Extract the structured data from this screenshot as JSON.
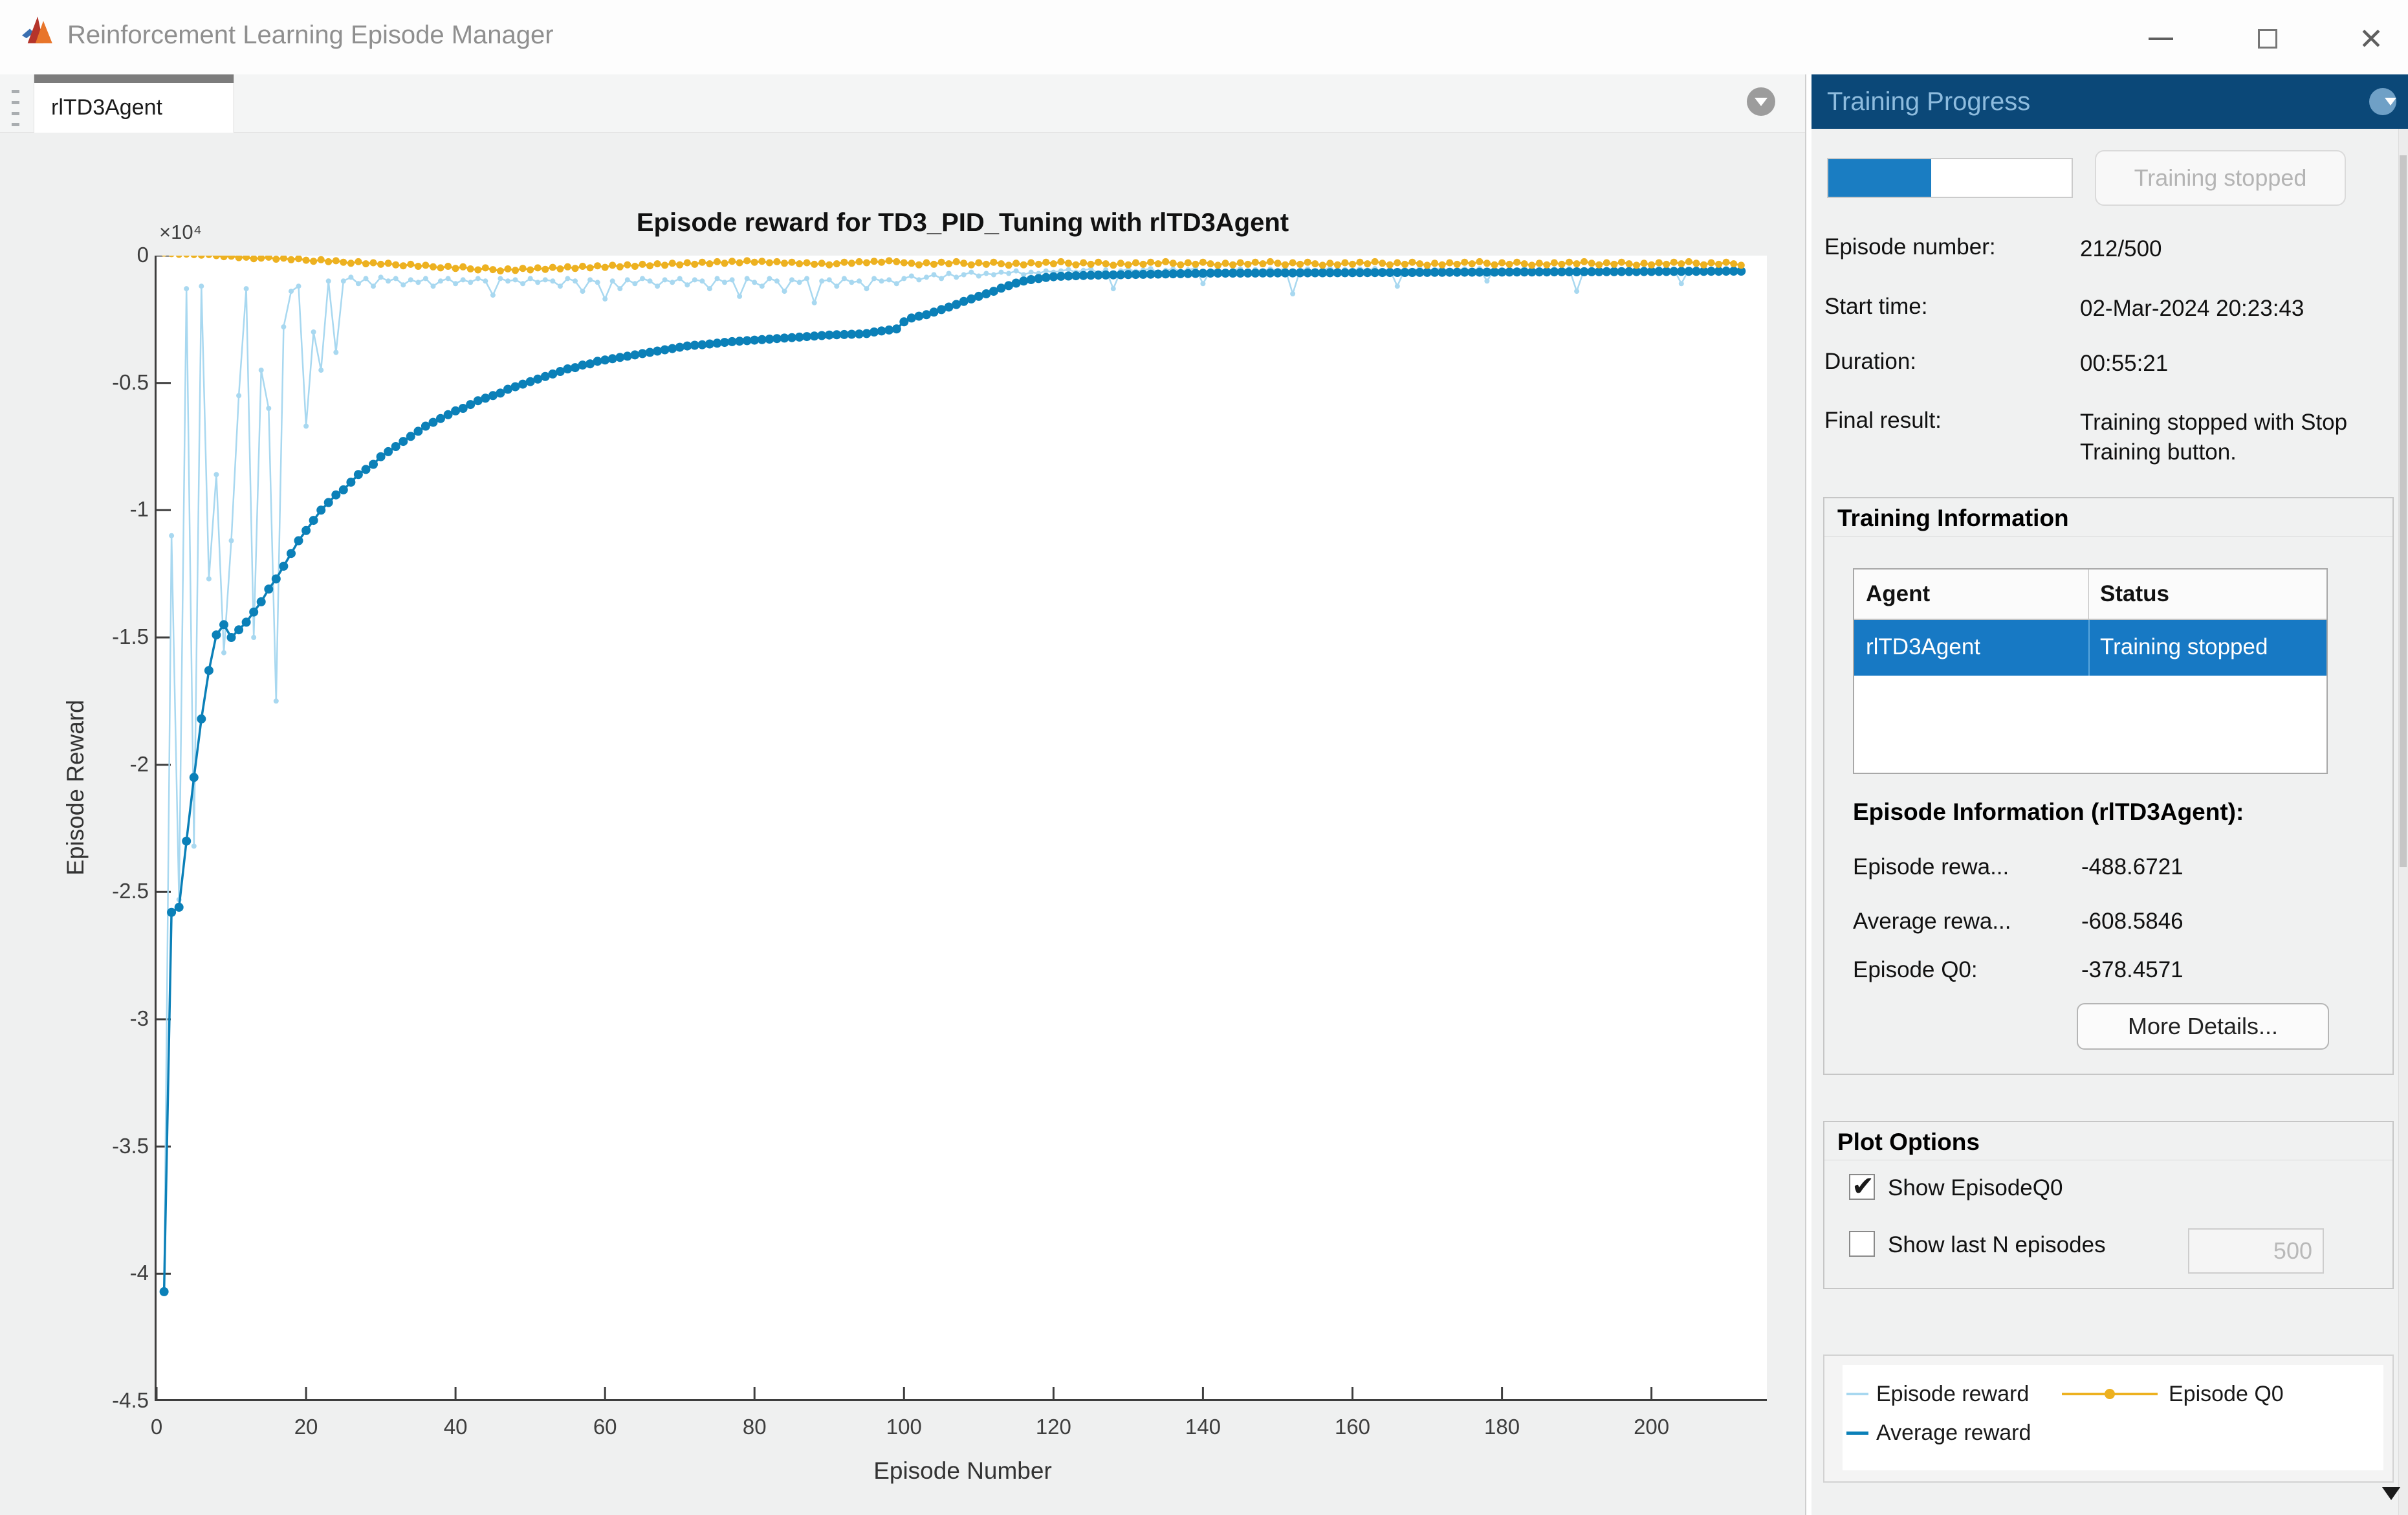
{
  "window": {
    "title": "Reinforcement Learning Episode Manager",
    "controls": {
      "minimize": "minimize",
      "maximize": "maximize",
      "close": "close"
    }
  },
  "tabbar": {
    "tab_label": "rlTD3Agent"
  },
  "colors": {
    "panel_header_bg": "#0b4878",
    "panel_header_text": "#8ebcde",
    "selection_bg": "#1779c4",
    "progress_fill": "#1a7dc2"
  },
  "panel": {
    "header": "Training Progress",
    "progress": {
      "percent": 42.4
    },
    "stop_button_label": "Training stopped",
    "rows": [
      {
        "label": "Episode number:",
        "value": "212/500"
      },
      {
        "label": "Start time:",
        "value": "02-Mar-2024 20:23:43"
      },
      {
        "label": "Duration:",
        "value": "00:55:21"
      },
      {
        "label": "Final result:",
        "value": "Training stopped with Stop Training button."
      }
    ],
    "training_information": {
      "title": "Training Information",
      "table": {
        "columns": [
          "Agent",
          "Status"
        ],
        "rows": [
          {
            "agent": "rlTD3Agent",
            "status": "Training stopped",
            "selected": true
          }
        ]
      },
      "episode_info_title": "Episode Information (rlTD3Agent):",
      "stats": [
        {
          "label": "Episode rewa...",
          "value": "-488.6721"
        },
        {
          "label": "Average rewa...",
          "value": "-608.5846"
        },
        {
          "label": "Episode Q0:",
          "value": "-378.4571"
        }
      ],
      "more_details_label": "More Details..."
    },
    "plot_options": {
      "title": "Plot Options",
      "show_episode_q0": {
        "label": "Show EpisodeQ0",
        "checked": true
      },
      "show_last_n": {
        "label": "Show last N episodes",
        "checked": false,
        "value": "500"
      }
    }
  },
  "chart_data": {
    "type": "line",
    "title": "Episode reward for TD3_PID_Tuning with rlTD3Agent",
    "xlabel": "Episode Number",
    "ylabel": "Episode Reward",
    "exponent_label": "×10⁴",
    "value_scale": 10000,
    "xlim": [
      0,
      215.7
    ],
    "ylim": [
      -4.5,
      0
    ],
    "x_ticks": [
      0,
      20,
      40,
      60,
      80,
      100,
      120,
      140,
      160,
      180,
      200
    ],
    "y_ticks": [
      0,
      -0.5,
      -1,
      -1.5,
      -2,
      -2.5,
      -3,
      -3.5,
      -4,
      -4.5
    ],
    "grid": false,
    "legend_position": "panel-bottom-right",
    "series": [
      {
        "name": "Episode reward",
        "color": "#a8d8f0",
        "values": [
          -4.07,
          -1.1,
          -2.53,
          -0.13,
          -2.32,
          -0.12,
          -1.27,
          -0.86,
          -1.56,
          -1.12,
          -0.55,
          -0.13,
          -1.5,
          -0.45,
          -0.6,
          -1.75,
          -0.28,
          -0.14,
          -0.12,
          -0.67,
          -0.3,
          -0.45,
          -0.1,
          -0.38,
          -0.1,
          -0.085,
          -0.11,
          -0.09,
          -0.12,
          -0.085,
          -0.1,
          -0.09,
          -0.115,
          -0.095,
          -0.105,
          -0.09,
          -0.12,
          -0.1,
          -0.09,
          -0.11,
          -0.095,
          -0.105,
          -0.09,
          -0.1,
          -0.155,
          -0.09,
          -0.1,
          -0.095,
          -0.11,
          -0.09,
          -0.105,
          -0.095,
          -0.1,
          -0.12,
          -0.09,
          -0.1,
          -0.14,
          -0.095,
          -0.105,
          -0.17,
          -0.1,
          -0.13,
          -0.095,
          -0.11,
          -0.09,
          -0.1,
          -0.12,
          -0.095,
          -0.105,
          -0.09,
          -0.115,
          -0.095,
          -0.1,
          -0.13,
          -0.09,
          -0.105,
          -0.095,
          -0.16,
          -0.09,
          -0.105,
          -0.12,
          -0.09,
          -0.1,
          -0.14,
          -0.095,
          -0.105,
          -0.09,
          -0.185,
          -0.1,
          -0.095,
          -0.12,
          -0.09,
          -0.105,
          -0.1,
          -0.13,
          -0.09,
          -0.1,
          -0.095,
          -0.11,
          -0.09,
          -0.08,
          -0.095,
          -0.085,
          -0.075,
          -0.09,
          -0.07,
          -0.085,
          -0.075,
          -0.065,
          -0.08,
          -0.07,
          -0.075,
          -0.065,
          -0.07,
          -0.06,
          -0.075,
          -0.065,
          -0.07,
          -0.06,
          -0.065,
          -0.06,
          -0.055,
          -0.065,
          -0.058,
          -0.052,
          -0.068,
          -0.056,
          -0.13,
          -0.06,
          -0.054,
          -0.062,
          -0.057,
          -0.051,
          -0.066,
          -0.058,
          -0.053,
          -0.061,
          -0.056,
          -0.05,
          -0.11,
          -0.059,
          -0.054,
          -0.063,
          -0.057,
          -0.052,
          -0.067,
          -0.055,
          -0.06,
          -0.053,
          -0.058,
          -0.051,
          -0.15,
          -0.057,
          -0.052,
          -0.064,
          -0.056,
          -0.05,
          -0.062,
          -0.055,
          -0.059,
          -0.052,
          -0.057,
          -0.051,
          -0.065,
          -0.056,
          -0.12,
          -0.054,
          -0.058,
          -0.052,
          -0.061,
          -0.055,
          -0.05,
          -0.063,
          -0.056,
          -0.052,
          -0.058,
          -0.051,
          -0.1,
          -0.055,
          -0.059,
          -0.053,
          -0.057,
          -0.05,
          -0.062,
          -0.054,
          -0.058,
          -0.052,
          -0.056,
          -0.051,
          -0.14,
          -0.055,
          -0.059,
          -0.052,
          -0.057,
          -0.05,
          -0.061,
          -0.054,
          -0.058,
          -0.052,
          -0.056,
          -0.05,
          -0.06,
          -0.053,
          -0.11,
          -0.055,
          -0.051,
          -0.058,
          -0.052,
          -0.056,
          -0.05,
          -0.054,
          -0.0489
        ]
      },
      {
        "name": "Average reward",
        "color": "#0b80b8",
        "values": [
          -4.07,
          -2.58,
          -2.56,
          -2.3,
          -2.05,
          -1.82,
          -1.63,
          -1.49,
          -1.45,
          -1.5,
          -1.47,
          -1.44,
          -1.4,
          -1.36,
          -1.31,
          -1.27,
          -1.22,
          -1.17,
          -1.12,
          -1.08,
          -1.04,
          -1.0,
          -0.97,
          -0.94,
          -0.92,
          -0.89,
          -0.86,
          -0.84,
          -0.82,
          -0.79,
          -0.77,
          -0.75,
          -0.73,
          -0.71,
          -0.69,
          -0.67,
          -0.655,
          -0.64,
          -0.625,
          -0.61,
          -0.6,
          -0.585,
          -0.57,
          -0.56,
          -0.55,
          -0.54,
          -0.525,
          -0.515,
          -0.505,
          -0.495,
          -0.485,
          -0.475,
          -0.465,
          -0.455,
          -0.445,
          -0.44,
          -0.43,
          -0.425,
          -0.415,
          -0.41,
          -0.405,
          -0.4,
          -0.395,
          -0.39,
          -0.385,
          -0.38,
          -0.375,
          -0.37,
          -0.365,
          -0.36,
          -0.355,
          -0.352,
          -0.35,
          -0.347,
          -0.344,
          -0.341,
          -0.338,
          -0.336,
          -0.334,
          -0.332,
          -0.33,
          -0.328,
          -0.326,
          -0.324,
          -0.322,
          -0.32,
          -0.318,
          -0.316,
          -0.314,
          -0.312,
          -0.311,
          -0.31,
          -0.309,
          -0.308,
          -0.306,
          -0.3,
          -0.296,
          -0.292,
          -0.288,
          -0.26,
          -0.245,
          -0.238,
          -0.232,
          -0.222,
          -0.212,
          -0.202,
          -0.192,
          -0.18,
          -0.17,
          -0.16,
          -0.15,
          -0.14,
          -0.128,
          -0.118,
          -0.108,
          -0.1,
          -0.094,
          -0.09,
          -0.086,
          -0.083,
          -0.081,
          -0.08,
          -0.079,
          -0.078,
          -0.077,
          -0.0765,
          -0.076,
          -0.0755,
          -0.075,
          -0.0745,
          -0.074,
          -0.0735,
          -0.073,
          -0.0725,
          -0.072,
          -0.0715,
          -0.071,
          -0.0705,
          -0.07,
          -0.0695,
          -0.069,
          -0.0689,
          -0.0688,
          -0.0687,
          -0.0686,
          -0.0684,
          -0.0683,
          -0.0682,
          -0.0681,
          -0.068,
          -0.0679,
          -0.0678,
          -0.0677,
          -0.0676,
          -0.0674,
          -0.0673,
          -0.0672,
          -0.0671,
          -0.067,
          -0.0669,
          -0.0668,
          -0.0667,
          -0.0666,
          -0.0664,
          -0.0663,
          -0.0662,
          -0.0661,
          -0.066,
          -0.0659,
          -0.0658,
          -0.0657,
          -0.0656,
          -0.0654,
          -0.0653,
          -0.0652,
          -0.0651,
          -0.065,
          -0.0649,
          -0.0648,
          -0.0647,
          -0.0646,
          -0.0644,
          -0.0643,
          -0.0642,
          -0.0641,
          -0.064,
          -0.0639,
          -0.0638,
          -0.0637,
          -0.0636,
          -0.0634,
          -0.0633,
          -0.0632,
          -0.0631,
          -0.063,
          -0.0629,
          -0.0628,
          -0.0627,
          -0.0626,
          -0.0624,
          -0.0623,
          -0.0622,
          -0.0621,
          -0.062,
          -0.0619,
          -0.0618,
          -0.0617,
          -0.0616,
          -0.0614,
          -0.0613,
          -0.0611,
          -0.0609
        ]
      },
      {
        "name": "Episode Q0",
        "color": "#edb120",
        "values": [
          0.01,
          0.008,
          0.005,
          0.006,
          0.004,
          0.002,
          0.004,
          0.0,
          -0.004,
          -0.002,
          -0.008,
          -0.006,
          -0.012,
          -0.01,
          -0.006,
          -0.014,
          -0.01,
          -0.016,
          -0.012,
          -0.018,
          -0.022,
          -0.016,
          -0.024,
          -0.02,
          -0.026,
          -0.03,
          -0.024,
          -0.032,
          -0.028,
          -0.034,
          -0.03,
          -0.036,
          -0.04,
          -0.034,
          -0.042,
          -0.038,
          -0.044,
          -0.048,
          -0.042,
          -0.05,
          -0.044,
          -0.052,
          -0.056,
          -0.048,
          -0.055,
          -0.06,
          -0.052,
          -0.058,
          -0.05,
          -0.056,
          -0.048,
          -0.054,
          -0.046,
          -0.052,
          -0.044,
          -0.05,
          -0.042,
          -0.048,
          -0.04,
          -0.046,
          -0.038,
          -0.044,
          -0.036,
          -0.042,
          -0.034,
          -0.04,
          -0.032,
          -0.038,
          -0.03,
          -0.036,
          -0.028,
          -0.034,
          -0.026,
          -0.032,
          -0.024,
          -0.03,
          -0.022,
          -0.028,
          -0.02,
          -0.026,
          -0.022,
          -0.028,
          -0.024,
          -0.03,
          -0.026,
          -0.032,
          -0.028,
          -0.034,
          -0.03,
          -0.036,
          -0.032,
          -0.026,
          -0.03,
          -0.024,
          -0.028,
          -0.022,
          -0.026,
          -0.02,
          -0.024,
          -0.028,
          -0.03,
          -0.036,
          -0.028,
          -0.034,
          -0.026,
          -0.032,
          -0.024,
          -0.03,
          -0.036,
          -0.028,
          -0.034,
          -0.026,
          -0.032,
          -0.038,
          -0.03,
          -0.036,
          -0.028,
          -0.034,
          -0.026,
          -0.032,
          -0.024,
          -0.03,
          -0.036,
          -0.028,
          -0.034,
          -0.026,
          -0.032,
          -0.038,
          -0.03,
          -0.036,
          -0.028,
          -0.034,
          -0.026,
          -0.032,
          -0.024,
          -0.03,
          -0.036,
          -0.028,
          -0.034,
          -0.026,
          -0.032,
          -0.038,
          -0.03,
          -0.036,
          -0.028,
          -0.034,
          -0.026,
          -0.032,
          -0.024,
          -0.03,
          -0.036,
          -0.028,
          -0.034,
          -0.026,
          -0.032,
          -0.038,
          -0.03,
          -0.036,
          -0.028,
          -0.034,
          -0.026,
          -0.032,
          -0.024,
          -0.03,
          -0.036,
          -0.028,
          -0.034,
          -0.026,
          -0.032,
          -0.038,
          -0.03,
          -0.036,
          -0.028,
          -0.034,
          -0.026,
          -0.032,
          -0.024,
          -0.03,
          -0.036,
          -0.028,
          -0.034,
          -0.026,
          -0.032,
          -0.038,
          -0.03,
          -0.036,
          -0.028,
          -0.034,
          -0.026,
          -0.032,
          -0.024,
          -0.03,
          -0.036,
          -0.028,
          -0.034,
          -0.026,
          -0.032,
          -0.038,
          -0.03,
          -0.036,
          -0.028,
          -0.034,
          -0.026,
          -0.032,
          -0.024,
          -0.03,
          -0.036,
          -0.028,
          -0.034,
          -0.026,
          -0.032,
          -0.0378
        ]
      }
    ]
  }
}
